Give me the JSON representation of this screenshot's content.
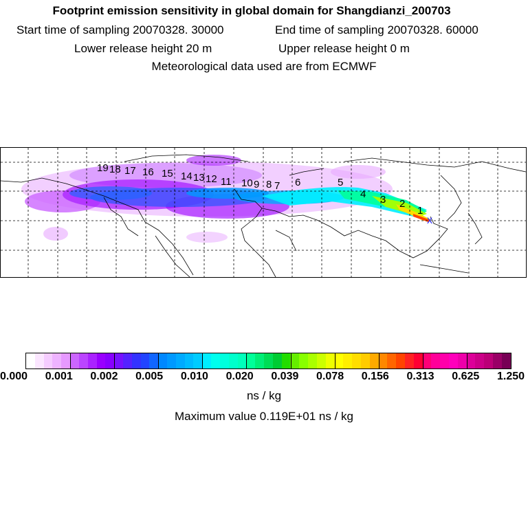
{
  "header": {
    "title": "Footprint emission sensitivity in global domain for Shangdianzi_200703",
    "start_label": "Start time of sampling 20070328. 30000",
    "end_label": "End time of sampling 20070328. 60000",
    "lower_label": "Lower release height   20 m",
    "upper_label": "Upper release height    0 m",
    "met_label": "Meteorological data used are from ECMWF"
  },
  "map": {
    "trajectory_labels": [
      "1",
      "2",
      "3",
      "4",
      "5",
      "6",
      "7",
      "8",
      "9",
      "10",
      "11",
      "12",
      "13",
      "14",
      "15",
      "16",
      "17",
      "18",
      "19"
    ],
    "receptor_marker": "x"
  },
  "colorbar": {
    "tick_labels": [
      "0.000",
      "0.001",
      "0.002",
      "0.005",
      "0.010",
      "0.020",
      "0.039",
      "0.078",
      "0.156",
      "0.313",
      "0.625",
      "1.250"
    ],
    "colors": [
      "#ffffff",
      "#fbe6ff",
      "#f5ccff",
      "#eeb3ff",
      "#e699ff",
      "#cc66ff",
      "#bb44ff",
      "#aa22ff",
      "#9900ff",
      "#8800ff",
      "#7711ff",
      "#5522ff",
      "#3333ff",
      "#2244ff",
      "#1166ff",
      "#0088ff",
      "#0099ff",
      "#00aaff",
      "#00bbff",
      "#00ccff",
      "#00eeff",
      "#00ffee",
      "#00ffdd",
      "#00ffcc",
      "#00ffbb",
      "#00ff99",
      "#00ee77",
      "#00dd55",
      "#00cc33",
      "#22dd00",
      "#66ee00",
      "#88ff00",
      "#aaff00",
      "#ccff00",
      "#eeff00",
      "#ffff00",
      "#ffee00",
      "#ffdd00",
      "#ffcc00",
      "#ffaa00",
      "#ff8800",
      "#ff6600",
      "#ff4400",
      "#ff2222",
      "#ff0033",
      "#ff0077",
      "#ff0099",
      "#ff00aa",
      "#ff00bb",
      "#ee00aa",
      "#dd0099",
      "#cc0088",
      "#bb0077",
      "#990066",
      "#770055"
    ],
    "unit": "ns / kg",
    "max_value_text": "Maximum value  0.119E+01 ns / kg"
  }
}
